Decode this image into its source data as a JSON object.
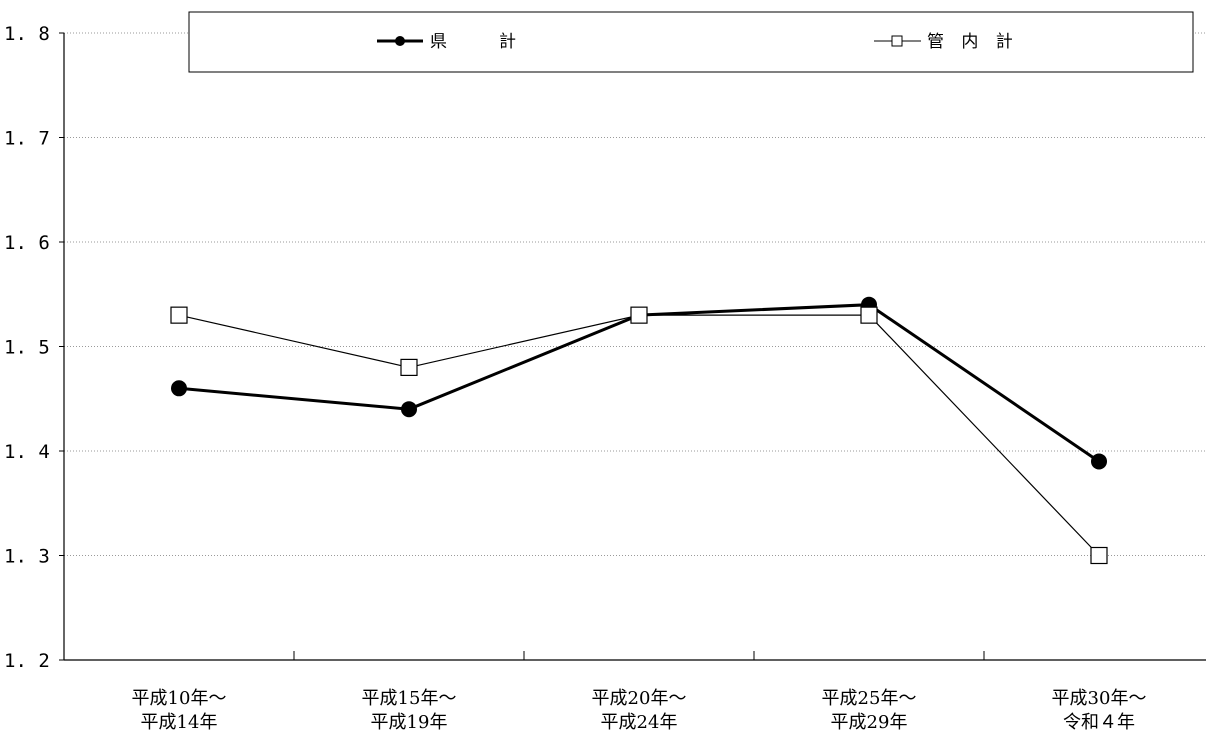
{
  "chart_data": {
    "type": "line",
    "title": "",
    "xlabel": "",
    "ylabel": "",
    "categories": [
      [
        "平成10年～",
        "平成14年"
      ],
      [
        "平成15年～",
        "平成19年"
      ],
      [
        "平成20年～",
        "平成24年"
      ],
      [
        "平成25年～",
        "平成29年"
      ],
      [
        "平成30年～",
        "令和４年"
      ]
    ],
    "yticks": [
      "1.2",
      "1.3",
      "1.4",
      "1.5",
      "1.6",
      "1.7",
      "1.8"
    ],
    "ylim": [
      1.2,
      1.8
    ],
    "grid": true,
    "legend_position": "top",
    "series": [
      {
        "name": "県　　計",
        "values": [
          1.46,
          1.44,
          1.53,
          1.54,
          1.39
        ],
        "marker": "filled-circle",
        "line": "thick",
        "color": "#000000"
      },
      {
        "name": "管 内 計",
        "values": [
          1.53,
          1.48,
          1.53,
          1.53,
          1.3
        ],
        "marker": "open-square",
        "line": "thin",
        "color": "#000000"
      }
    ]
  }
}
